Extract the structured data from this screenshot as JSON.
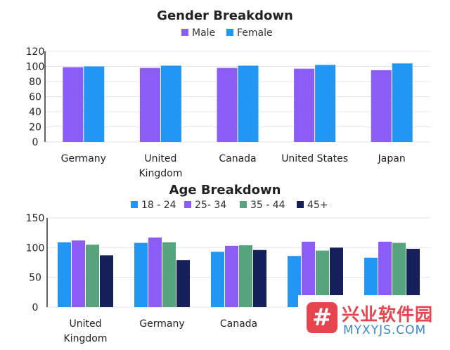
{
  "chart_data": [
    {
      "type": "bar",
      "title": "Gender Breakdown",
      "categories": [
        [
          "Germany"
        ],
        [
          "United",
          "Kingdom"
        ],
        [
          "Canada"
        ],
        [
          "United States"
        ],
        [
          "Japan"
        ]
      ],
      "series": [
        {
          "name": "Male",
          "values": [
            99,
            98,
            98,
            97,
            95
          ],
          "color": "#8b5cf6"
        },
        {
          "name": "Female",
          "values": [
            100,
            101,
            101,
            102,
            104
          ],
          "color": "#2196f3"
        }
      ],
      "ylim": [
        0,
        120
      ],
      "yticks": [
        0,
        20,
        40,
        60,
        80,
        100,
        120
      ],
      "legend": "top-center",
      "grid": true
    },
    {
      "type": "bar",
      "title": "Age Breakdown",
      "categories": [
        [
          "United",
          "Kingdom"
        ],
        [
          "Germany"
        ],
        [
          "Canada"
        ],
        [
          ""
        ],
        [
          ""
        ]
      ],
      "series": [
        {
          "name": "18 - 24",
          "values": [
            109,
            108,
            93,
            86,
            83
          ],
          "color": "#2196f3"
        },
        {
          "name": "25- 34",
          "values": [
            112,
            117,
            103,
            110,
            110
          ],
          "color": "#8b5cf6"
        },
        {
          "name": "35 - 44",
          "values": [
            105,
            109,
            104,
            95,
            108
          ],
          "color": "#57a37e"
        },
        {
          "name": "45+",
          "values": [
            87,
            79,
            96,
            100,
            98
          ],
          "color": "#16215c"
        }
      ],
      "ylim": [
        0,
        150
      ],
      "yticks": [
        0,
        50,
        100,
        150
      ],
      "legend": "top-center",
      "grid": true
    }
  ],
  "watermark": {
    "logo_glyph": "#",
    "title": "兴业软件园",
    "subtitle": "MYXYJS.COM"
  }
}
